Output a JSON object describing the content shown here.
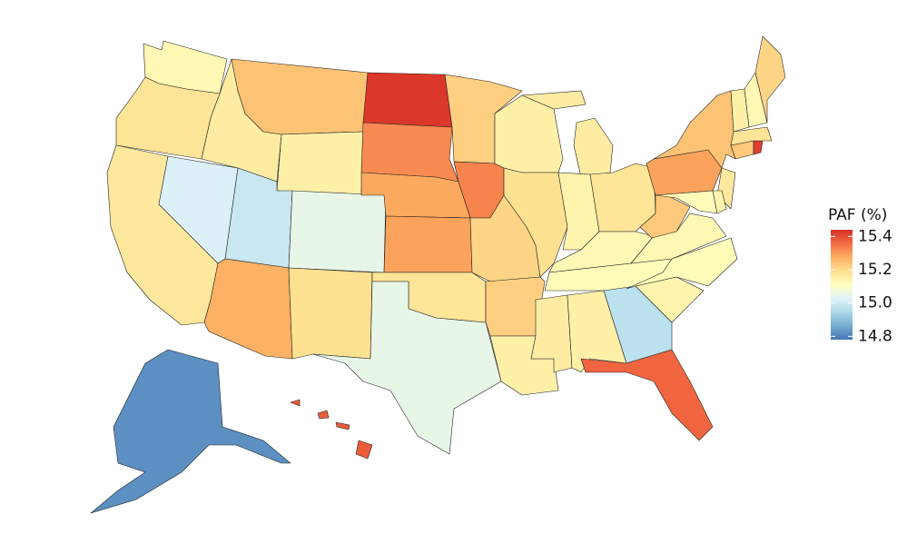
{
  "chart_data": {
    "type": "choropleth",
    "values": {
      "WA": 15.13,
      "OR": 15.18,
      "CA": 15.17,
      "NV": 15.02,
      "ID": 15.16,
      "MT": 15.24,
      "WY": 15.15,
      "UT": 14.99,
      "CO": 15.05,
      "AZ": 15.27,
      "NM": 15.19,
      "ND": 15.43,
      "SD": 15.32,
      "NE": 15.28,
      "KS": 15.29,
      "OK": 15.18,
      "TX": 15.05,
      "MN": 15.22,
      "IA": 15.33,
      "MO": 15.21,
      "AR": 15.22,
      "LA": 15.15,
      "WI": 15.15,
      "IL": 15.19,
      "MI": 15.16,
      "IN": 15.14,
      "OH": 15.18,
      "KY": 15.13,
      "TN": 15.12,
      "MS": 15.16,
      "AL": 15.15,
      "GA": 14.97,
      "FL": 15.37,
      "SC": 15.14,
      "NC": 15.12,
      "VA": 15.13,
      "WV": 15.23,
      "PA": 15.29,
      "NY": 15.24,
      "NJ": 15.17,
      "MD": 15.12,
      "DE": 15.14,
      "CT": 15.23,
      "RI": 15.42,
      "MA": 15.18,
      "VT": 15.15,
      "NH": 15.13,
      "ME": 15.21,
      "AK": 14.82,
      "HI": 15.38
    },
    "colorbar": {
      "title": "PAF (%)",
      "clim": [
        14.78,
        15.44
      ],
      "ticks": [
        14.8,
        {
          "value": 15,
          "label": "15.0"
        },
        15.2,
        15.4
      ],
      "colors": [
        "#4575b4",
        "#74add1",
        "#abd9e9",
        "#e0f3f8",
        "#ffffbf",
        "#fee090",
        "#fdae61",
        "#f46d43",
        "#d73027"
      ]
    }
  }
}
